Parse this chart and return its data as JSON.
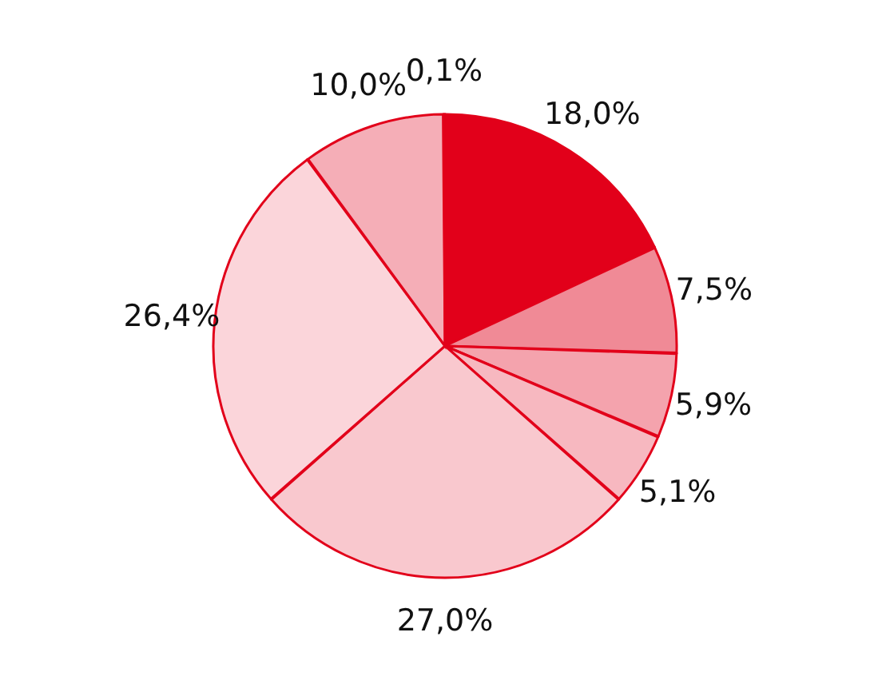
{
  "chart_data": {
    "type": "pie",
    "categories": [
      null,
      null,
      null,
      null,
      null,
      null,
      null,
      null
    ],
    "values": [
      18.0,
      7.5,
      5.9,
      5.1,
      27.0,
      26.4,
      10.0,
      0.1
    ],
    "colors": [
      "#e2001a",
      "#f08a96",
      "#f4a3ad",
      "#f7b8c0",
      "#f9c8ce",
      "#fbd5da",
      "#f5aeb7",
      "#e2001a"
    ],
    "value_labels": [
      "18,0%",
      "7,5%",
      "5,9%",
      "5,1%",
      "27,0%",
      "26,4%",
      "10,0%",
      "0,1%"
    ]
  }
}
